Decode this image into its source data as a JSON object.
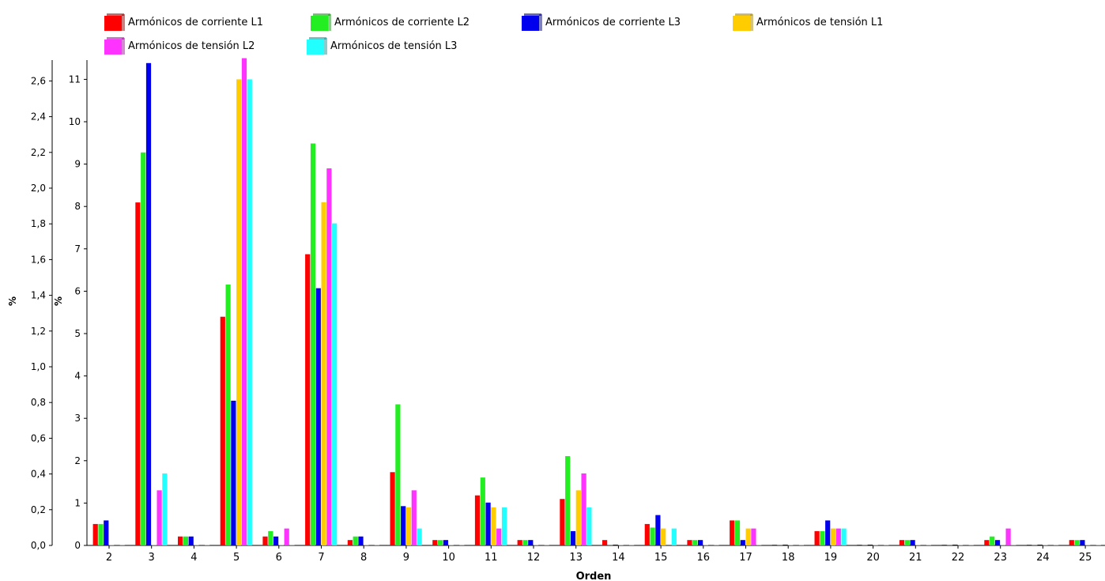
{
  "chart_data": {
    "type": "bar",
    "xlabel": "Orden",
    "ylabel_left": "%",
    "ylabel_right": "%",
    "categories": [
      "2",
      "3",
      "4",
      "5",
      "6",
      "7",
      "8",
      "9",
      "10",
      "11",
      "12",
      "13",
      "14",
      "15",
      "16",
      "17",
      "18",
      "19",
      "20",
      "21",
      "22",
      "23",
      "24",
      "25"
    ],
    "axis_current": {
      "ylim": [
        0,
        2.7
      ],
      "ticks": [
        "0,0",
        "0,2",
        "0,4",
        "0,6",
        "0,8",
        "1,0",
        "1,2",
        "1,4",
        "1,6",
        "1,8",
        "2,0",
        "2,2",
        "2,4",
        "2,6"
      ],
      "tick_values": [
        0,
        0.2,
        0.4,
        0.6,
        0.8,
        1.0,
        1.2,
        1.4,
        1.6,
        1.8,
        2.0,
        2.2,
        2.4,
        2.6
      ]
    },
    "axis_voltage": {
      "ylim": [
        0,
        11.5
      ],
      "ticks": [
        "0",
        "1",
        "2",
        "3",
        "4",
        "5",
        "6",
        "7",
        "8",
        "9",
        "10",
        "11"
      ],
      "tick_values": [
        0,
        1,
        2,
        3,
        4,
        5,
        6,
        7,
        8,
        9,
        10,
        11
      ]
    },
    "series": [
      {
        "name": "Armónicos de corriente L1",
        "axis": "current",
        "color": "#ff0000",
        "values": [
          0.12,
          1.92,
          0.05,
          1.28,
          0.05,
          1.63,
          0.03,
          0.41,
          0.03,
          0.28,
          0.03,
          0.26,
          0.03,
          0.12,
          0.03,
          0.14,
          0.0,
          0.08,
          0.0,
          0.03,
          0.0,
          0.03,
          0.0,
          0.03
        ]
      },
      {
        "name": "Armónicos de corriente L2",
        "axis": "current",
        "color": "#22ee22",
        "values": [
          0.12,
          2.2,
          0.05,
          1.46,
          0.08,
          2.25,
          0.05,
          0.79,
          0.03,
          0.38,
          0.03,
          0.5,
          0.0,
          0.1,
          0.03,
          0.14,
          0.0,
          0.08,
          0.0,
          0.03,
          0.0,
          0.05,
          0.0,
          0.03
        ]
      },
      {
        "name": "Armónicos de corriente L3",
        "axis": "current",
        "color": "#0000ee",
        "values": [
          0.14,
          2.7,
          0.05,
          0.81,
          0.05,
          1.44,
          0.05,
          0.22,
          0.03,
          0.24,
          0.03,
          0.08,
          0.0,
          0.17,
          0.03,
          0.03,
          0.0,
          0.14,
          0.0,
          0.03,
          0.0,
          0.03,
          0.0,
          0.03
        ]
      },
      {
        "name": "Armónicos de tensión L1",
        "axis": "voltage",
        "color": "#ffcc00",
        "values": [
          0.0,
          0.0,
          0.0,
          11.0,
          0.0,
          8.1,
          0.0,
          0.9,
          0.0,
          0.9,
          0.0,
          1.3,
          0.0,
          0.4,
          0.0,
          0.4,
          0.0,
          0.4,
          0.0,
          0.0,
          0.0,
          0.0,
          0.0,
          0.0
        ]
      },
      {
        "name": "Armónicos de tensión L2",
        "axis": "voltage",
        "color": "#ff33ff",
        "values": [
          0.0,
          1.3,
          0.0,
          11.5,
          0.4,
          8.9,
          0.0,
          1.3,
          0.0,
          0.4,
          0.0,
          1.7,
          0.0,
          0.0,
          0.0,
          0.4,
          0.0,
          0.4,
          0.0,
          0.0,
          0.0,
          0.4,
          0.0,
          0.0
        ]
      },
      {
        "name": "Armónicos de tensión L3",
        "axis": "voltage",
        "color": "#22ffff",
        "values": [
          0.0,
          1.7,
          0.0,
          11.0,
          0.0,
          7.6,
          0.0,
          0.4,
          0.0,
          0.9,
          0.0,
          0.9,
          0.0,
          0.4,
          0.0,
          0.0,
          0.0,
          0.4,
          0.0,
          0.0,
          0.0,
          0.0,
          0.0,
          0.0
        ]
      }
    ]
  }
}
